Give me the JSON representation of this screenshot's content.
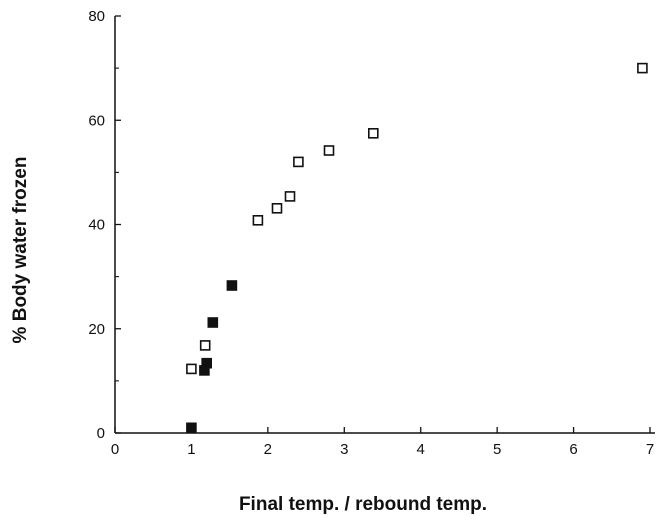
{
  "chart_data": {
    "type": "scatter",
    "title": "",
    "xlabel": "Final temp. / rebound temp.",
    "ylabel": "% Body water frozen",
    "xlim": [
      0,
      7
    ],
    "ylim": [
      0,
      80
    ],
    "x_ticks": [
      0,
      1,
      2,
      3,
      4,
      5,
      6,
      7
    ],
    "y_ticks": [
      0,
      20,
      40,
      60,
      80
    ],
    "grid": false,
    "legend": "none",
    "series": [
      {
        "marker": "open-square",
        "color": "#111111",
        "points": [
          {
            "x": 1.0,
            "y": 12.3
          },
          {
            "x": 1.18,
            "y": 16.8
          },
          {
            "x": 1.87,
            "y": 40.8
          },
          {
            "x": 2.12,
            "y": 43.1
          },
          {
            "x": 2.29,
            "y": 45.4
          },
          {
            "x": 2.4,
            "y": 52.0
          },
          {
            "x": 2.8,
            "y": 54.2
          },
          {
            "x": 3.38,
            "y": 57.5
          },
          {
            "x": 6.9,
            "y": 70.0
          }
        ]
      },
      {
        "marker": "filled-square",
        "color": "#111111",
        "points": [
          {
            "x": 1.0,
            "y": 1.0
          },
          {
            "x": 1.17,
            "y": 12.0
          },
          {
            "x": 1.2,
            "y": 13.4
          },
          {
            "x": 1.28,
            "y": 21.2
          },
          {
            "x": 1.53,
            "y": 28.3
          }
        ]
      }
    ]
  }
}
